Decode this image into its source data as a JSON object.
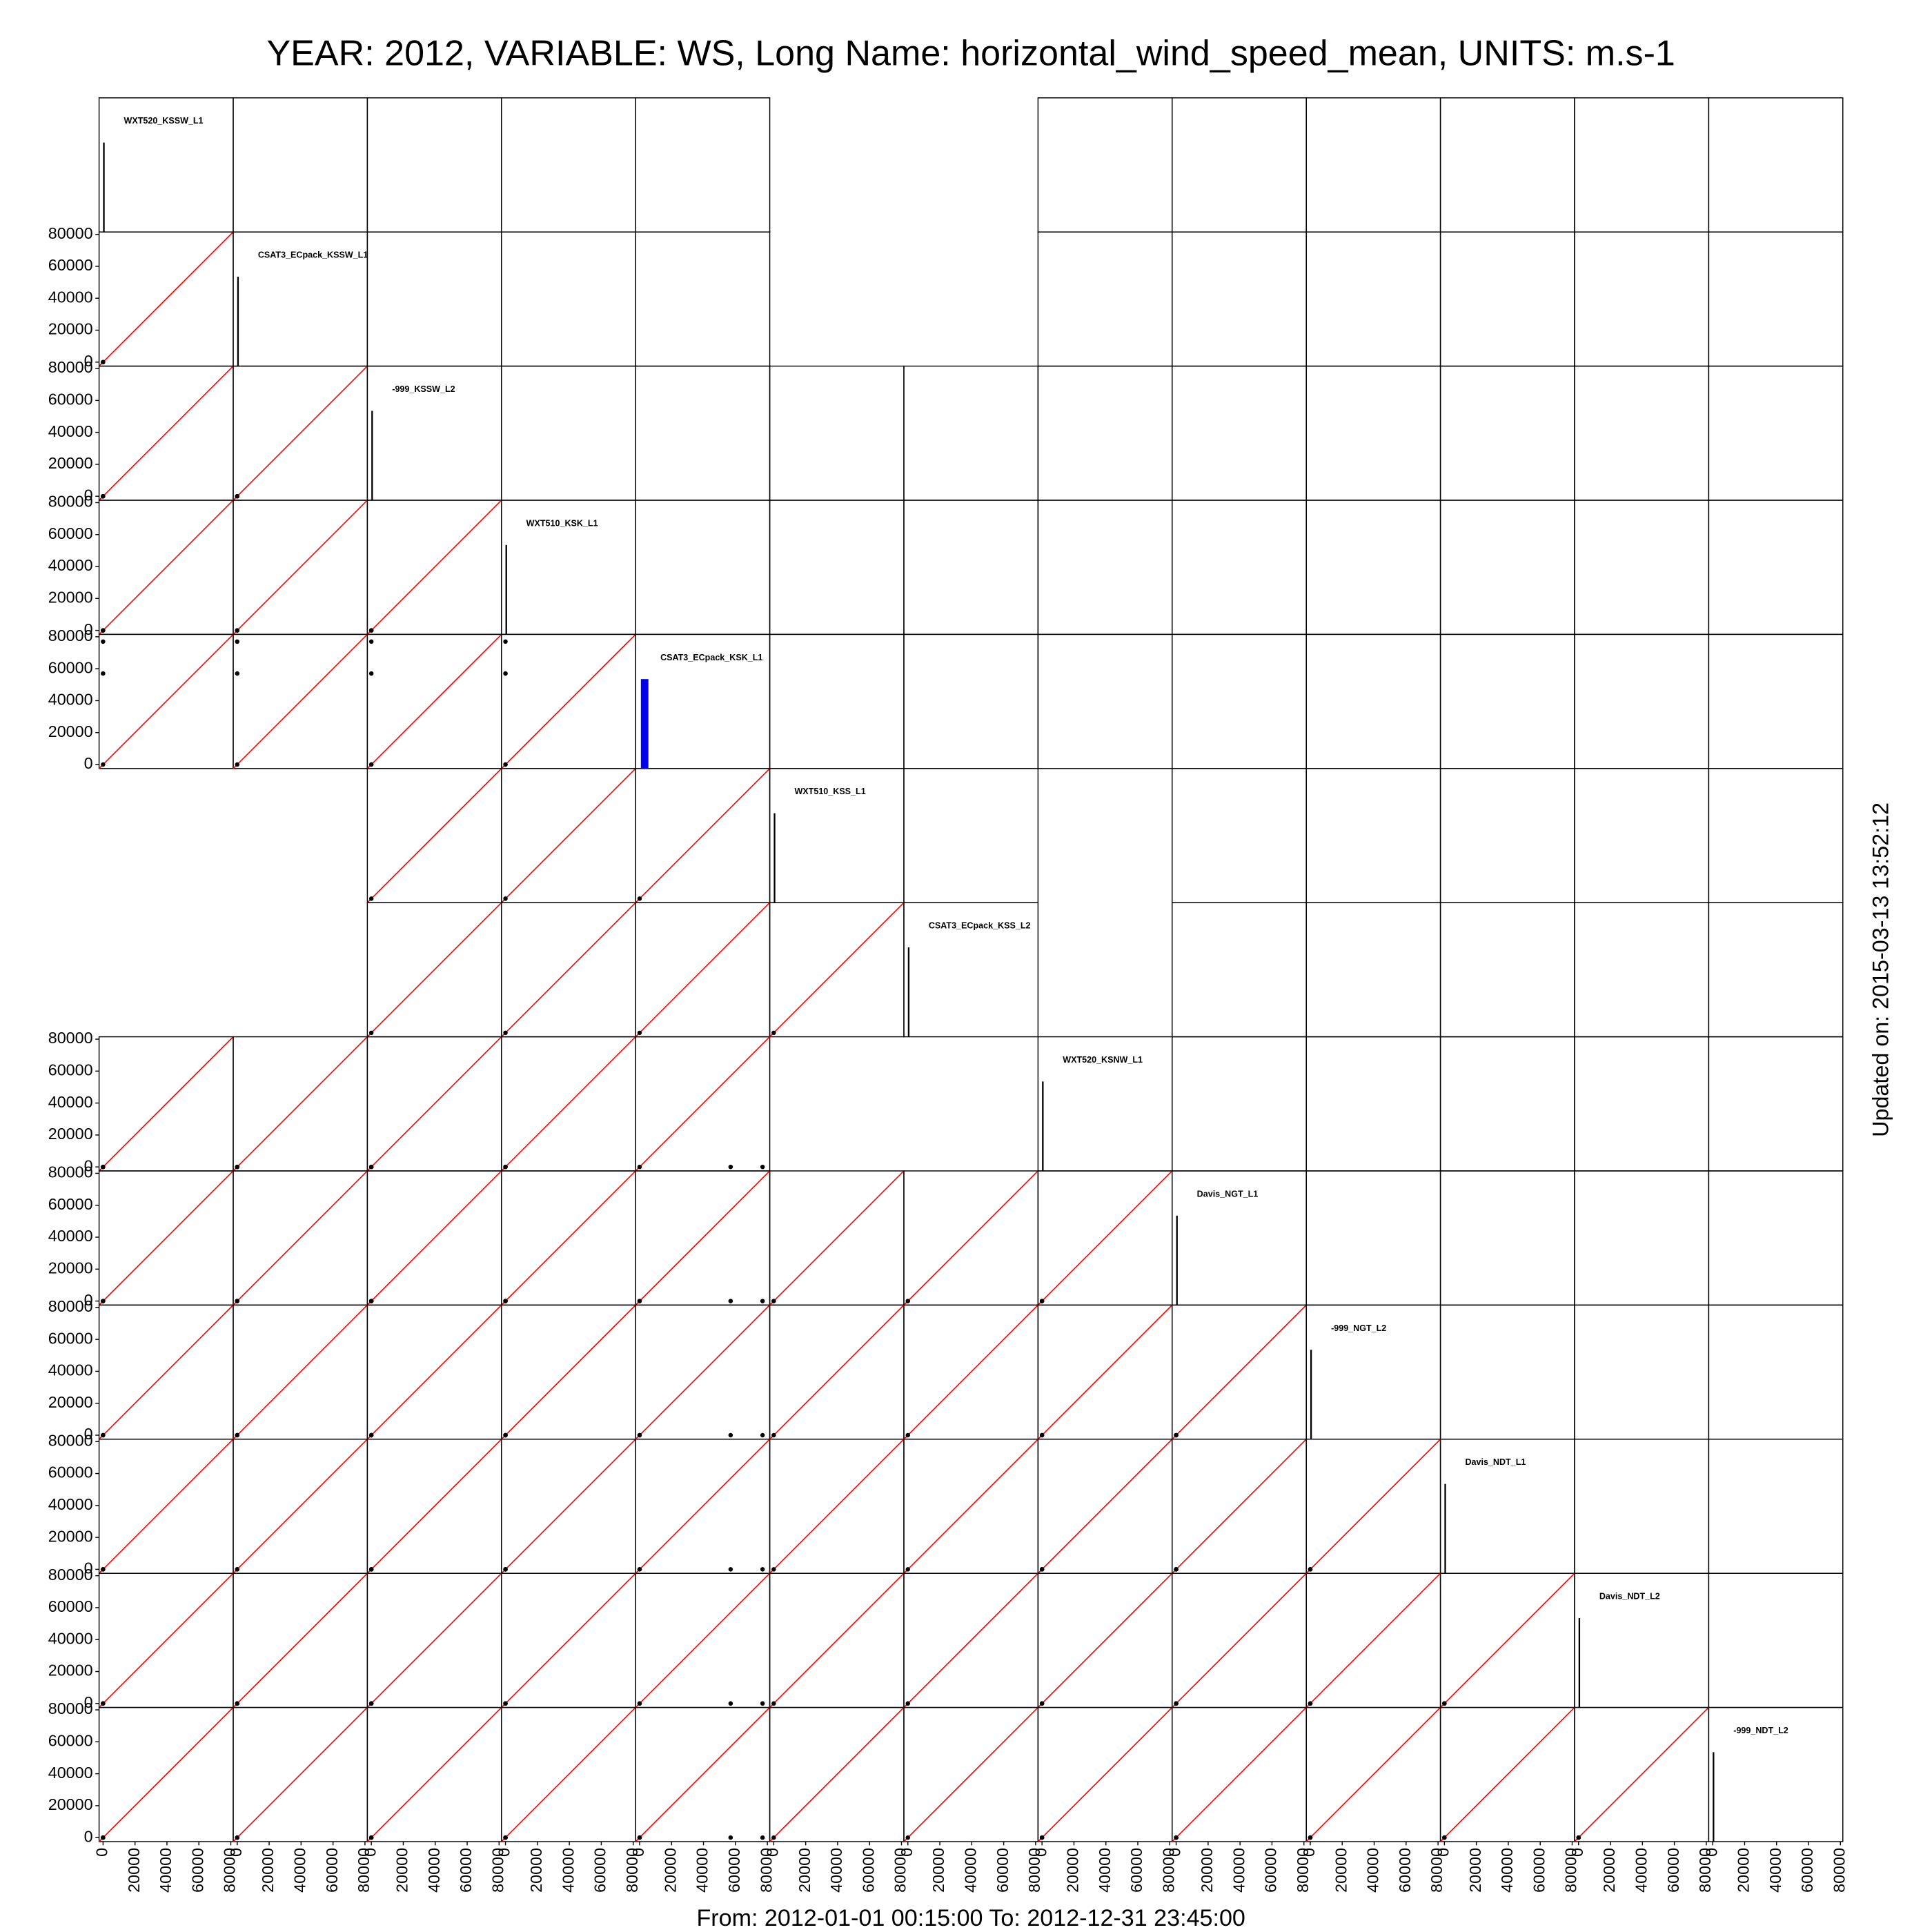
{
  "chart_data": {
    "type": "scatter_matrix",
    "title": "YEAR: 2012, VARIABLE: WS, Long Name: horizontal_wind_speed_mean, UNITS: m.s-1",
    "x_label": "From: 2012-01-01 00:15:00 To: 2012-12-31 23:45:00",
    "side_label": "Updated on: 2015-03-13 13:52:12",
    "xlim": [
      -2500,
      81500
    ],
    "ylim": [
      -2500,
      81500
    ],
    "xticks": [
      0,
      20000,
      40000,
      60000,
      80000
    ],
    "yticks": [
      0,
      20000,
      40000,
      60000,
      80000
    ],
    "point_color": "#000000",
    "identity_line_color": "#ff0000",
    "hist_ylim": [
      0,
      1.5
    ],
    "variables": [
      {
        "name": "WXT520_KSSW_L1",
        "values": [
          0,
          null,
          0,
          0
        ],
        "hist": {
          "bins": [
            0,
            1000
          ],
          "counts": [
            1
          ]
        },
        "hist_color": "#000000"
      },
      {
        "name": "CSAT3_ECpack_KSSW_L1",
        "values": [
          0,
          null,
          0,
          0
        ],
        "hist": {
          "bins": [
            0,
            1000
          ],
          "counts": [
            1
          ]
        },
        "hist_color": "#000000"
      },
      {
        "name": "-999_KSSW_L2",
        "values": [
          0,
          0,
          0,
          0
        ],
        "hist": {
          "bins": [
            0,
            1000
          ],
          "counts": [
            1
          ]
        },
        "hist_color": "#000000"
      },
      {
        "name": "WXT510_KSK_L1",
        "values": [
          0,
          0,
          0,
          0
        ],
        "hist": {
          "bins": [
            0,
            1000
          ],
          "counts": [
            1
          ]
        },
        "hist_color": "#000000"
      },
      {
        "name": "CSAT3_ECpack_KSK_L1",
        "values": [
          0,
          0,
          57000,
          77000
        ],
        "hist": {
          "bins": [
            800,
            5500
          ],
          "counts": [
            1
          ]
        },
        "hist_color": "#0000ee"
      },
      {
        "name": "WXT510_KSS_L1",
        "values": [
          null,
          0,
          null,
          null
        ],
        "hist": {
          "bins": [
            0,
            1000
          ],
          "counts": [
            1
          ]
        },
        "hist_color": "#000000"
      },
      {
        "name": "CSAT3_ECpack_KSS_L2",
        "values": [
          null,
          0,
          null,
          null
        ],
        "hist": {
          "bins": [
            0,
            1000
          ],
          "counts": [
            1
          ]
        },
        "hist_color": "#000000"
      },
      {
        "name": "WXT520_KSNW_L1",
        "values": [
          0,
          null,
          0,
          0
        ],
        "hist": {
          "bins": [
            0,
            1000
          ],
          "counts": [
            1
          ]
        },
        "hist_color": "#000000"
      },
      {
        "name": "Davis_NGT_L1",
        "values": [
          0,
          0,
          0,
          0
        ],
        "hist": {
          "bins": [
            0,
            1000
          ],
          "counts": [
            1
          ]
        },
        "hist_color": "#000000"
      },
      {
        "name": "-999_NGT_L2",
        "values": [
          0,
          0,
          0,
          0
        ],
        "hist": {
          "bins": [
            0,
            1000
          ],
          "counts": [
            1
          ]
        },
        "hist_color": "#000000"
      },
      {
        "name": "Davis_NDT_L1",
        "values": [
          0,
          0,
          0,
          0
        ],
        "hist": {
          "bins": [
            0,
            1000
          ],
          "counts": [
            1
          ]
        },
        "hist_color": "#000000"
      },
      {
        "name": "Davis_NDT_L2",
        "values": [
          0,
          0,
          0,
          0
        ],
        "hist": {
          "bins": [
            0,
            1000
          ],
          "counts": [
            1
          ]
        },
        "hist_color": "#000000"
      },
      {
        "name": "-999_NDT_L2",
        "values": [
          0,
          0,
          0,
          0
        ],
        "hist": {
          "bins": [
            0,
            1000
          ],
          "counts": [
            1
          ]
        },
        "hist_color": "#000000"
      }
    ]
  }
}
